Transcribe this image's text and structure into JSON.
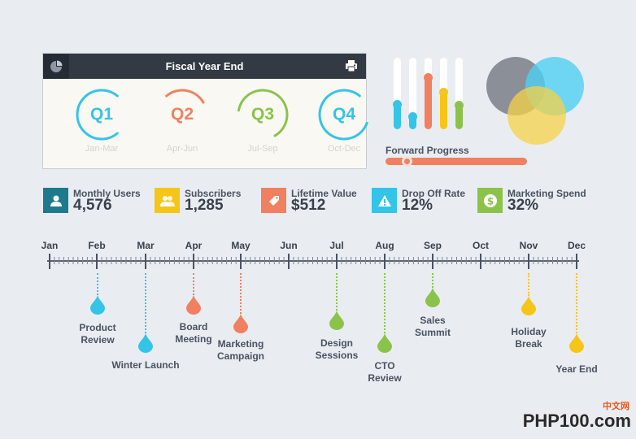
{
  "panel": {
    "title": "Fiscal Year End",
    "quarters": [
      {
        "label": "Q1",
        "range": "Jan-Mar",
        "color": "#33c4e8"
      },
      {
        "label": "Q2",
        "range": "Apr-Jun",
        "color": "#f0805f"
      },
      {
        "label": "Q3",
        "range": "Jul-Sep",
        "color": "#8bc34a"
      },
      {
        "label": "Q4",
        "range": "Oct-Dec",
        "color": "#33c4e8"
      }
    ]
  },
  "progress": {
    "label": "Forward Progress",
    "value": 0.15
  },
  "equalizer": [
    {
      "color": "#33c4e8",
      "level": 0.35
    },
    {
      "color": "#33c4e8",
      "level": 0.18
    },
    {
      "color": "#f0805f",
      "level": 0.73
    },
    {
      "color": "#f5c518",
      "level": 0.52
    },
    {
      "color": "#8bc34a",
      "level": 0.34
    }
  ],
  "stats": [
    {
      "label": "Monthly Users",
      "value": "4,576",
      "icon": "user-icon",
      "color": "#1d7a8c"
    },
    {
      "label": "Subscribers",
      "value": "1,285",
      "icon": "group-icon",
      "color": "#f5c518"
    },
    {
      "label": "Lifetime Value",
      "value": "$512",
      "icon": "tag-icon",
      "color": "#f0805f"
    },
    {
      "label": "Drop Off Rate",
      "value": "12%",
      "icon": "warning-icon",
      "color": "#33c4e8"
    },
    {
      "label": "Marketing Spend",
      "value": "32%",
      "icon": "dollar-icon",
      "color": "#8bc34a"
    }
  ],
  "months": [
    "Jan",
    "Feb",
    "Mar",
    "Apr",
    "May",
    "Jun",
    "Jul",
    "Aug",
    "Sep",
    "Oct",
    "Nov",
    "Dec"
  ],
  "events": [
    {
      "lines": [
        "Product",
        "Review"
      ],
      "color": "#33c4e8"
    },
    {
      "lines": [
        "Winter Launch"
      ],
      "color": "#33c4e8"
    },
    {
      "lines": [
        "Board",
        "Meeting"
      ],
      "color": "#f0805f"
    },
    {
      "lines": [
        "Marketing",
        "Campaign"
      ],
      "color": "#f0805f"
    },
    {
      "lines": [
        "Design",
        "Sessions"
      ],
      "color": "#8bc34a"
    },
    {
      "lines": [
        "CTO",
        "Review"
      ],
      "color": "#8bc34a"
    },
    {
      "lines": [
        "Sales",
        "Summit"
      ],
      "color": "#8bc34a"
    },
    {
      "lines": [
        "Holiday",
        "Break"
      ],
      "color": "#f5c518"
    },
    {
      "lines": [
        "Year End"
      ],
      "color": "#f5c518"
    }
  ],
  "logo": {
    "main": "PHP100",
    "suffix": ".com",
    "cn": "中文网"
  }
}
